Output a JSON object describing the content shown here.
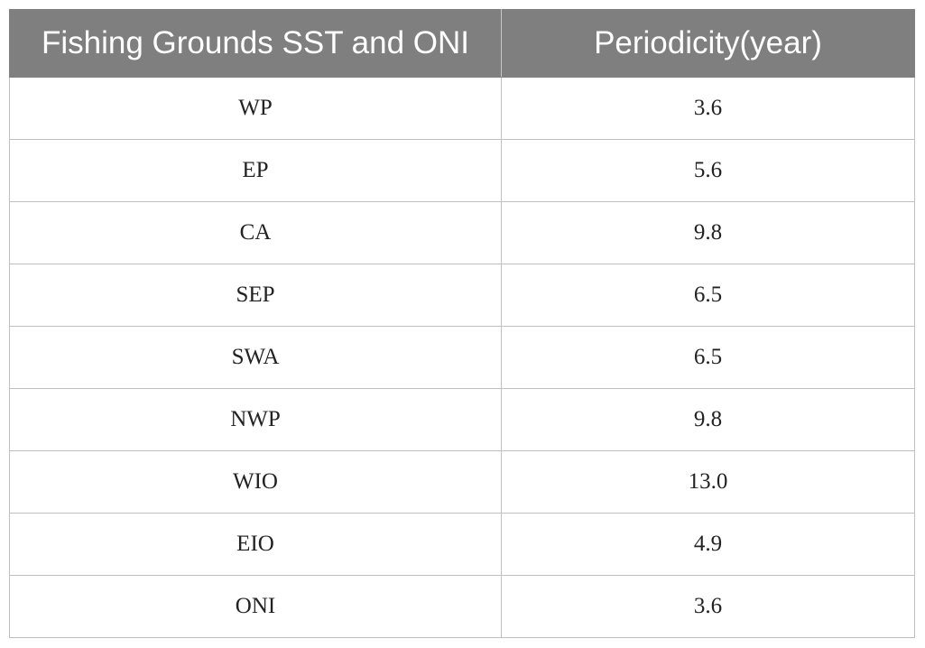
{
  "table": {
    "headers": [
      "Fishing Grounds SST and ONI",
      "Periodicity(year)"
    ],
    "rows": [
      {
        "name": "WP",
        "value": "3.6"
      },
      {
        "name": "EP",
        "value": "5.6"
      },
      {
        "name": "CA",
        "value": "9.8"
      },
      {
        "name": "SEP",
        "value": "6.5"
      },
      {
        "name": "SWA",
        "value": "6.5"
      },
      {
        "name": "NWP",
        "value": "9.8"
      },
      {
        "name": "WIO",
        "value": "13.0"
      },
      {
        "name": "EIO",
        "value": "4.9"
      },
      {
        "name": "ONI",
        "value": "3.6"
      }
    ]
  },
  "colors": {
    "header_bg": "#7f7f7f",
    "header_text": "#ffffff",
    "grid_line": "#bfbfbf",
    "cell_text": "#222222"
  }
}
